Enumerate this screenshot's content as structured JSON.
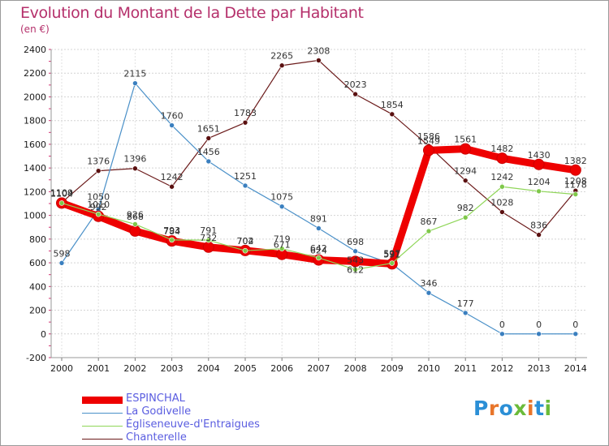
{
  "title": "Evolution du Montant de la Dette par Habitant",
  "subtitle": "(en €)",
  "logo": {
    "text": "Proxiti",
    "colors": [
      "#2b8fd6",
      "#e8752a",
      "#2b8fd6",
      "#6bbb3a",
      "#e8752a",
      "#2b8fd6",
      "#6bbb3a"
    ]
  },
  "chart_data": {
    "type": "line",
    "title": "Evolution du Montant de la Dette par Habitant",
    "ylabel": "(en €)",
    "xlabel": "",
    "ylim": [
      -200,
      2400
    ],
    "yticks": [
      -200,
      0,
      200,
      400,
      600,
      800,
      1000,
      1200,
      1400,
      1600,
      1800,
      2000,
      2200,
      2400
    ],
    "grid": true,
    "legend_position": "bottom-left",
    "x": [
      "2000",
      "2001",
      "2002",
      "2003",
      "2004",
      "2005",
      "2006",
      "2007",
      "2008",
      "2009",
      "2010",
      "2011",
      "2012",
      "2013",
      "2014"
    ],
    "series": [
      {
        "name": "ESPINCHAL",
        "color": "#ee0000",
        "values": [
          1104,
          992,
          868,
          784,
          732,
          704,
          671,
          624,
          612,
          591,
          1549,
          1561,
          1482,
          1430,
          1382
        ]
      },
      {
        "name": "La Godivelle",
        "color": "#4a90c8",
        "values": [
          598,
          1050,
          null,
          1760,
          1456,
          1251,
          1075,
          891,
          698,
          591,
          346,
          177,
          0,
          0,
          0
        ]
      },
      {
        "name": "Égliseneuve-d'Entraigues",
        "color": "#8fd658",
        "values": [
          1104,
          1010,
          926,
          793,
          791,
          702,
          719,
          642,
          543,
          597,
          867,
          982,
          1242,
          1204,
          1178
        ]
      },
      {
        "name": "Chanterelle",
        "color": "#6b1a1a",
        "values": [
          1109,
          1376,
          1396,
          1242,
          1651,
          1783,
          2265,
          2308,
          2023,
          1854,
          1586,
          1294,
          1028,
          836,
          1208
        ]
      }
    ],
    "annotations": {
      "godivelle_2002": 2115
    }
  },
  "legend": [
    {
      "label": "ESPINCHAL",
      "color": "#ee0000",
      "weight": 9
    },
    {
      "label": "La Godivelle",
      "color": "#4a90c8",
      "weight": 1
    },
    {
      "label": "Égliseneuve-d'Entraigues",
      "color": "#8fd658",
      "weight": 1
    },
    {
      "label": "Chanterelle",
      "color": "#6b1a1a",
      "weight": 1
    }
  ]
}
